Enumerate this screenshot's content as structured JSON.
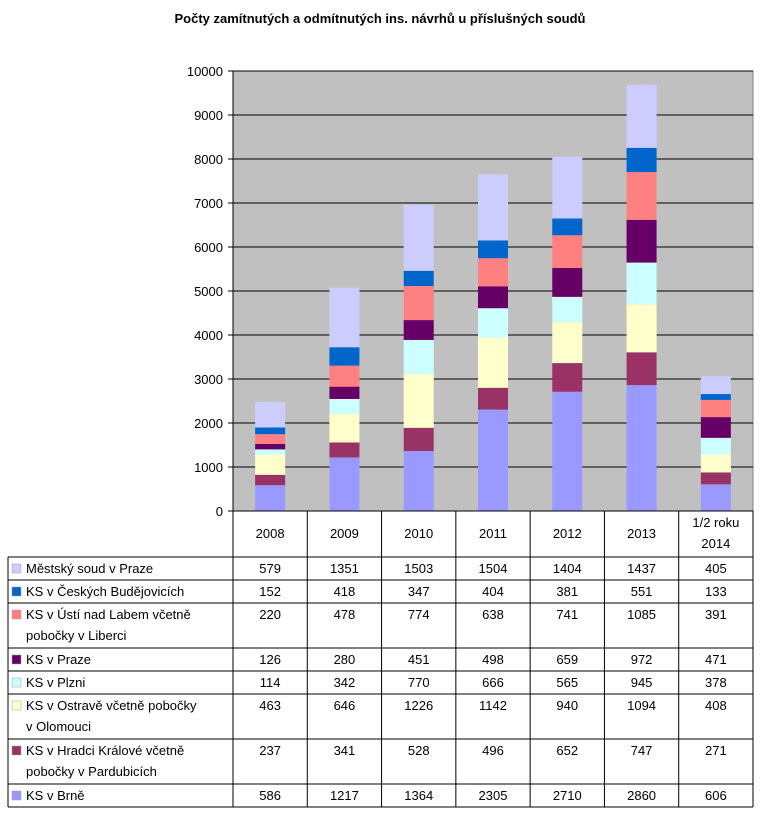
{
  "chart_data": {
    "type": "bar",
    "stacked": true,
    "title": "Počty zamítnutých a odmítnutých ins. návrhů u příslušných soudů",
    "categories": [
      "2008",
      "2009",
      "2010",
      "2011",
      "2012",
      "2013",
      "1/2 roku 2014"
    ],
    "ylim": [
      0,
      10000
    ],
    "yticks": [
      "0",
      "1000",
      "2000",
      "3000",
      "4000",
      "5000",
      "6000",
      "7000",
      "8000",
      "9000",
      "10000"
    ],
    "grid": true,
    "legend": "data-table",
    "plot_background": "#c0c0c0",
    "series": [
      {
        "name": "KS v Brně",
        "color": "#9999ff",
        "values": [
          586,
          1217,
          1364,
          2305,
          2710,
          2860,
          606
        ]
      },
      {
        "name": "KS v Hradci Králové včetně pobočky v Pardubicích",
        "color": "#993366",
        "values": [
          237,
          341,
          528,
          496,
          652,
          747,
          271
        ]
      },
      {
        "name": "KS v Ostravě včetně pobočky v Olomouci",
        "color": "#ffffcc",
        "values": [
          463,
          646,
          1226,
          1142,
          940,
          1094,
          408
        ]
      },
      {
        "name": "KS v Plzni",
        "color": "#ccffff",
        "values": [
          114,
          342,
          770,
          666,
          565,
          945,
          378
        ]
      },
      {
        "name": "KS v Praze",
        "color": "#660066",
        "values": [
          126,
          280,
          451,
          498,
          659,
          972,
          471
        ]
      },
      {
        "name": "KS v Ústí nad Labem včetně pobočky v Liberci",
        "color": "#ff8080",
        "values": [
          220,
          478,
          774,
          638,
          741,
          1085,
          391
        ]
      },
      {
        "name": "KS v Českých Budějovicích",
        "color": "#0066cc",
        "values": [
          152,
          418,
          347,
          404,
          381,
          551,
          133
        ]
      },
      {
        "name": "Městský soud v Praze",
        "color": "#ccccff",
        "values": [
          579,
          1351,
          1503,
          1504,
          1404,
          1437,
          405
        ]
      }
    ]
  }
}
